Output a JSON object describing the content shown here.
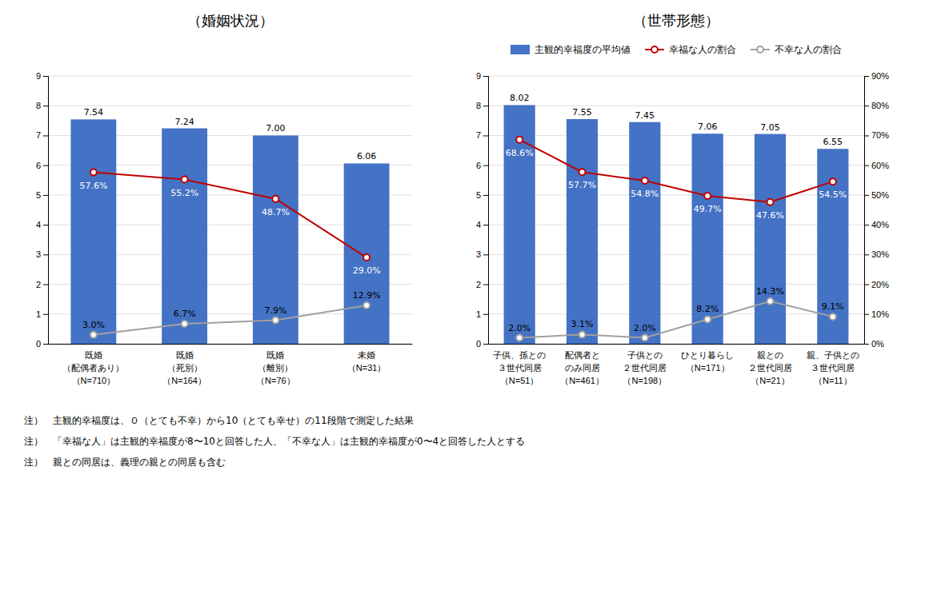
{
  "chart_data": [
    {
      "type": "bar",
      "title": "（婚姻状況）",
      "categories": [
        "既婚\n（配偶者あり）\n（N=710）",
        "既婚\n（死別）\n（N=164）",
        "既婚\n（離別）\n（N=76）",
        "未婚\n（N=31）"
      ],
      "series": [
        {
          "type": "bar",
          "color": "#4472C4",
          "values": [
            7.54,
            7.24,
            7.0,
            6.06
          ],
          "value_labels": [
            "7.54",
            "7.24",
            "7.00",
            "6.06"
          ]
        },
        {
          "type": "line",
          "axis": "y2",
          "color": "#C00000",
          "marker": "circle",
          "values": [
            57.6,
            55.2,
            48.7,
            29.0
          ],
          "value_labels": [
            "57.6%",
            "55.2%",
            "48.7%",
            "29.0%"
          ]
        },
        {
          "type": "line",
          "axis": "y2",
          "color": "#A0A0A0",
          "marker": "circle",
          "values": [
            3.0,
            6.7,
            7.9,
            12.9
          ],
          "value_labels": [
            "3.0%",
            "6.7%",
            "7.9%",
            "12.9%"
          ]
        }
      ],
      "ylim": [
        0,
        9
      ],
      "yticks": [
        0,
        1,
        2,
        3,
        4,
        5,
        6,
        7,
        8,
        9
      ],
      "y2lim": [
        0,
        90
      ],
      "grid": true,
      "data_labels": true,
      "annotations": [
        "注）　主観的幸福度は、０（とても不幸）から10（とても幸せ）の11段階で測定した結果",
        "注）　「幸福な人」は主観的幸福度が8〜10と回答した人、「不幸な人」は主観的幸福度が0〜4と回答した人とする",
        "注）　親との同居は、義理の親との同居も含む"
      ]
    },
    {
      "type": "bar",
      "title": "（世帯形態）",
      "categories": [
        "子供、孫との\n３世代同居\n（N=51）",
        "配偶者と\nのみ同居\n（N=461）",
        "子供との\n２世代同居\n（N=198）",
        "ひとり暮らし\n（N=171）",
        "親との\n２世代同居\n（N=21）",
        "親、子供との\n３世代同居\n（N=11）"
      ],
      "series": [
        {
          "name": "主観的幸福度の平均値",
          "type": "bar",
          "color": "#4472C4",
          "values": [
            8.02,
            7.55,
            7.45,
            7.06,
            7.05,
            6.55
          ],
          "value_labels": [
            "8.02",
            "7.55",
            "7.45",
            "7.06",
            "7.05",
            "6.55"
          ]
        },
        {
          "name": "幸福な人の割合",
          "type": "line",
          "axis": "y2",
          "color": "#C00000",
          "marker": "circle",
          "values": [
            68.6,
            57.7,
            54.8,
            49.7,
            47.6,
            54.5
          ],
          "value_labels": [
            "68.6%",
            "57.7%",
            "54.8%",
            "49.7%",
            "47.6%",
            "54.5%"
          ]
        },
        {
          "name": "不幸な人の割合",
          "type": "line",
          "axis": "y2",
          "color": "#A0A0A0",
          "marker": "circle",
          "values": [
            2.0,
            3.1,
            2.0,
            8.2,
            14.3,
            9.1
          ],
          "value_labels": [
            "2.0%",
            "3.1%",
            "2.0%",
            "8.2%",
            "14.3%",
            "9.1%"
          ]
        }
      ],
      "ylim": [
        0,
        9
      ],
      "yticks": [
        0,
        1,
        2,
        3,
        4,
        5,
        6,
        7,
        8,
        9
      ],
      "y2lim": [
        0,
        90
      ],
      "y2ticks": [
        {
          "value": 0,
          "label": "0%"
        },
        {
          "value": 10,
          "label": "10%"
        },
        {
          "value": 20,
          "label": "20%"
        },
        {
          "value": 30,
          "label": "30%"
        },
        {
          "value": 40,
          "label": "40%"
        },
        {
          "value": 50,
          "label": "50%"
        },
        {
          "value": 60,
          "label": "60%"
        },
        {
          "value": 70,
          "label": "70%"
        },
        {
          "value": 80,
          "label": "80%"
        },
        {
          "value": 90,
          "label": "90%"
        }
      ],
      "grid": true,
      "data_labels": true,
      "legend": "top"
    }
  ]
}
